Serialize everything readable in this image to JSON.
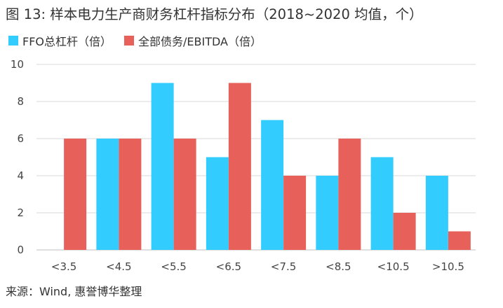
{
  "figure": {
    "title": "图 13: 样本电力生产商财务杠杆指标分布（2018~2020 均值，个）",
    "source": "来源：Wind, 惠誉博华整理"
  },
  "chart_data": {
    "type": "bar",
    "categories": [
      "<3.5",
      "<4.5",
      "<5.5",
      "<6.5",
      "<7.5",
      "<8.5",
      "<10.5",
      ">10.5"
    ],
    "series": [
      {
        "name": "FFO总杠杆（倍）",
        "color": "#33CCFF",
        "values": [
          0,
          6,
          9,
          5,
          7,
          4,
          5,
          4
        ]
      },
      {
        "name": "全部债务/EBITDA（倍）",
        "color": "#E8605A",
        "values": [
          6,
          6,
          6,
          9,
          4,
          6,
          2,
          1
        ]
      }
    ],
    "ylim": [
      0,
      10
    ],
    "yticks": [
      0,
      2,
      4,
      6,
      8,
      10
    ],
    "grid": true,
    "legend_position": "top-left"
  }
}
